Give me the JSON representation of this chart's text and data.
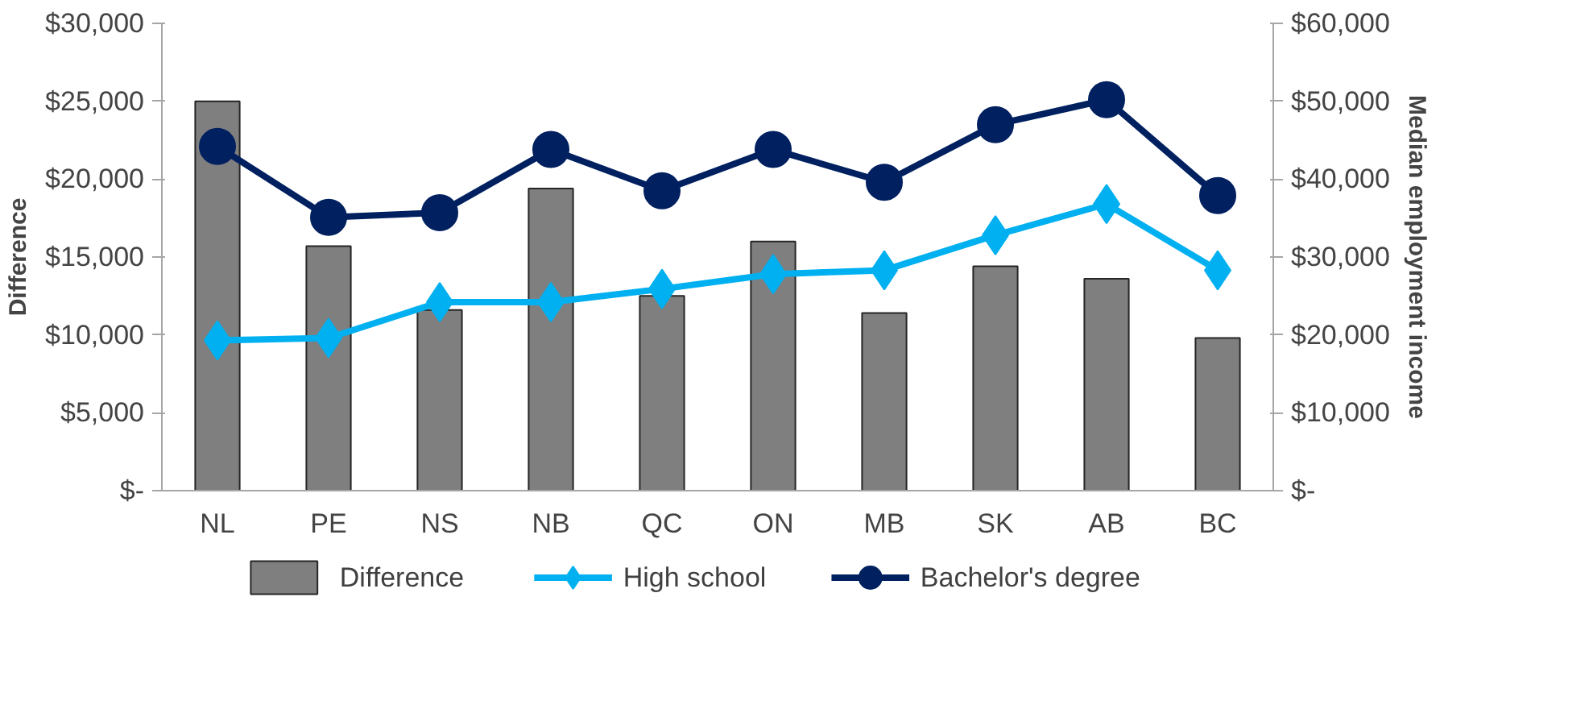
{
  "chart_data": {
    "type": "bar",
    "ylabel": "Difference",
    "y2label": "Median employment income",
    "categories": [
      "NL",
      "PE",
      "NS",
      "NB",
      "QC",
      "ON",
      "MB",
      "SK",
      "AB",
      "BC"
    ],
    "series": [
      {
        "name": "Difference",
        "color": "#7f7f7f",
        "values": [
          25000,
          15700,
          11600,
          19400,
          12500,
          16000,
          11400,
          14400,
          13600,
          9800
        ]
      },
      {
        "name": "High school",
        "type": "line",
        "axis": "y2",
        "marker": "diamond",
        "color": "#00b0f0",
        "values": [
          19300,
          19600,
          24200,
          24200,
          25900,
          27800,
          28300,
          32800,
          36800,
          28300
        ]
      },
      {
        "name": "Bachelor's degree",
        "type": "line",
        "axis": "y2",
        "marker": "circle",
        "color": "#002060",
        "values": [
          44200,
          35100,
          35700,
          43800,
          38500,
          43800,
          39600,
          47000,
          50200,
          37900
        ]
      }
    ],
    "ylim": [
      0,
      30000
    ],
    "yticks": [
      {
        "value": 0,
        "label": "$-"
      },
      {
        "value": 5000,
        "label": "$5,000"
      },
      {
        "value": 10000,
        "label": "$10,000"
      },
      {
        "value": 15000,
        "label": "$15,000"
      },
      {
        "value": 20000,
        "label": "$20,000"
      },
      {
        "value": 25000,
        "label": "$25,000"
      },
      {
        "value": 30000,
        "label": "$30,000"
      }
    ],
    "y2lim": [
      0,
      60000
    ],
    "y2ticks": [
      {
        "value": 0,
        "label": "$-"
      },
      {
        "value": 10000,
        "label": "$10,000"
      },
      {
        "value": 20000,
        "label": "$20,000"
      },
      {
        "value": 30000,
        "label": "$30,000"
      },
      {
        "value": 40000,
        "label": "$40,000"
      },
      {
        "value": 50000,
        "label": "$50,000"
      },
      {
        "value": 60000,
        "label": "$60,000"
      }
    ],
    "grid": false,
    "legend": "bottom"
  }
}
